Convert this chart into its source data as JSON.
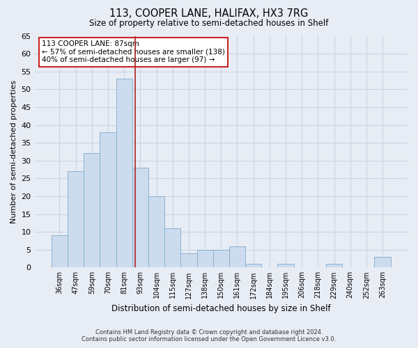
{
  "title": "113, COOPER LANE, HALIFAX, HX3 7RG",
  "subtitle": "Size of property relative to semi-detached houses in Shelf",
  "xlabel": "Distribution of semi-detached houses by size in Shelf",
  "ylabel": "Number of semi-detached properties",
  "categories": [
    "36sqm",
    "47sqm",
    "59sqm",
    "70sqm",
    "81sqm",
    "93sqm",
    "104sqm",
    "115sqm",
    "127sqm",
    "138sqm",
    "150sqm",
    "161sqm",
    "172sqm",
    "184sqm",
    "195sqm",
    "206sqm",
    "218sqm",
    "229sqm",
    "240sqm",
    "252sqm",
    "263sqm"
  ],
  "values": [
    9,
    27,
    32,
    38,
    53,
    28,
    20,
    11,
    4,
    5,
    5,
    6,
    1,
    0,
    1,
    0,
    0,
    1,
    0,
    0,
    3
  ],
  "bar_color": "#ccdcee",
  "bar_edge_color": "#8ab0d0",
  "vline_x": 4.7,
  "vline_color": "#aa2222",
  "annotation_text": "113 COOPER LANE: 87sqm\n← 57% of semi-detached houses are smaller (138)\n40% of semi-detached houses are larger (97) →",
  "annotation_box_color": "#ffffff",
  "annotation_box_edge_color": "#cc2222",
  "ylim": [
    0,
    65
  ],
  "yticks": [
    0,
    5,
    10,
    15,
    20,
    25,
    30,
    35,
    40,
    45,
    50,
    55,
    60,
    65
  ],
  "grid_color": "#c8d4e4",
  "background_color": "#e8edf5",
  "footer_line1": "Contains HM Land Registry data © Crown copyright and database right 2024.",
  "footer_line2": "Contains public sector information licensed under the Open Government Licence v3.0."
}
